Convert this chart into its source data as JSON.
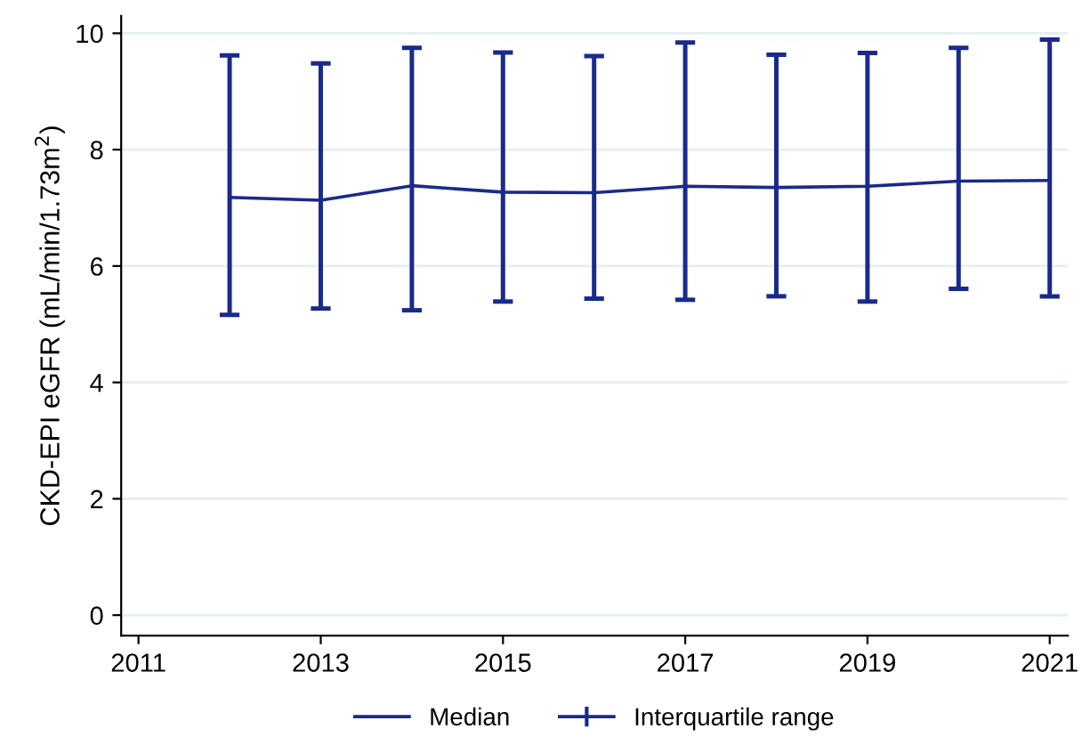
{
  "chart_data": {
    "type": "line",
    "ylabel": "CKD-EPI eGFR (mL/min/1.73m$^{2}$)",
    "x": [
      2012,
      2013,
      2014,
      2015,
      2016,
      2017,
      2018,
      2019,
      2020,
      2021
    ],
    "series": [
      {
        "name": "Median",
        "color": "#1a2a8c",
        "values": [
          7.18,
          7.13,
          7.38,
          7.27,
          7.26,
          7.37,
          7.35,
          7.37,
          7.46,
          7.47
        ],
        "errors": [
          [
            5.16,
            9.62
          ],
          [
            5.27,
            9.48
          ],
          [
            5.24,
            9.75
          ],
          [
            5.39,
            9.67
          ],
          [
            5.44,
            9.61
          ],
          [
            5.42,
            9.84
          ],
          [
            5.48,
            9.63
          ],
          [
            5.39,
            9.66
          ],
          [
            5.61,
            9.75
          ],
          [
            5.48,
            9.89
          ]
        ]
      },
      {
        "name": "Interquartile range",
        "type": "scatter",
        "color": "#1a2a8c",
        "values": [
          null,
          null,
          null,
          null,
          null,
          null,
          null,
          null,
          null,
          null
        ]
      }
    ],
    "xlim": [
      2010.81,
      2021.2
    ],
    "xticks": [
      2011,
      2013,
      2015,
      2017,
      2019,
      2021
    ],
    "ylim": [
      -0.35,
      10.3
    ],
    "yticks": [
      0,
      2,
      4,
      6,
      8,
      10
    ],
    "grid": "y",
    "legend": "bottom"
  }
}
